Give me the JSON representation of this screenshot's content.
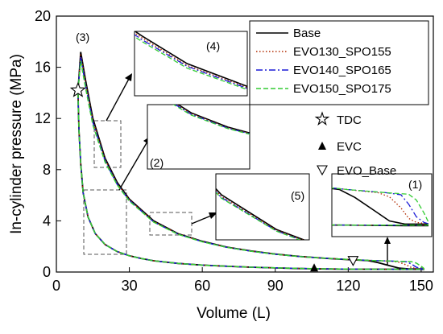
{
  "chart_data": {
    "type": "line",
    "xlabel": "Volume (L)",
    "ylabel": "In-cylinder pressure (MPa)",
    "xlim": [
      0,
      155
    ],
    "ylim": [
      0,
      20
    ],
    "x_ticks": [
      0,
      30,
      60,
      90,
      120,
      150
    ],
    "y_ticks": [
      0,
      4,
      8,
      12,
      16,
      20
    ],
    "legend": {
      "position": "top-right"
    },
    "series": [
      {
        "name": "Base",
        "color": "#000000",
        "dash": "solid",
        "expansion": [
          [
            10,
            17.2
          ],
          [
            12,
            15.0
          ],
          [
            15,
            12.0
          ],
          [
            20,
            8.9
          ],
          [
            25,
            7.0
          ],
          [
            30,
            5.7
          ],
          [
            40,
            4.0
          ],
          [
            50,
            3.0
          ],
          [
            60,
            2.4
          ],
          [
            70,
            1.95
          ],
          [
            80,
            1.65
          ],
          [
            90,
            1.4
          ],
          [
            100,
            1.22
          ],
          [
            110,
            1.08
          ],
          [
            120,
            0.97
          ],
          [
            128,
            0.9
          ],
          [
            132,
            0.75
          ],
          [
            137,
            0.5
          ],
          [
            141,
            0.3
          ],
          [
            145,
            0.24
          ],
          [
            149,
            0.24
          ],
          [
            151,
            0.24
          ]
        ],
        "compression": [
          [
            151,
            0.21
          ],
          [
            145,
            0.21
          ],
          [
            130,
            0.22
          ],
          [
            120,
            0.22
          ],
          [
            110,
            0.24
          ],
          [
            100,
            0.27
          ],
          [
            90,
            0.32
          ],
          [
            80,
            0.38
          ],
          [
            70,
            0.45
          ],
          [
            60,
            0.54
          ],
          [
            50,
            0.67
          ],
          [
            40,
            0.88
          ],
          [
            35,
            1.05
          ],
          [
            30,
            1.27
          ],
          [
            25,
            1.6
          ],
          [
            20,
            2.15
          ],
          [
            16,
            3.0
          ],
          [
            13,
            4.3
          ],
          [
            11,
            6.2
          ],
          [
            10,
            8.5
          ],
          [
            9.3,
            11.0
          ],
          [
            9,
            13.0
          ],
          [
            8.9,
            14.2
          ],
          [
            10,
            17.2
          ]
        ]
      },
      {
        "name": "EVO130_SPO155",
        "color": "#b22b00",
        "dash": "dotted",
        "expansion": [
          [
            10,
            17.0
          ],
          [
            12,
            14.8
          ],
          [
            15,
            11.8
          ],
          [
            20,
            8.8
          ],
          [
            25,
            6.9
          ],
          [
            30,
            5.65
          ],
          [
            40,
            3.95
          ],
          [
            50,
            2.98
          ],
          [
            60,
            2.38
          ],
          [
            70,
            1.94
          ],
          [
            80,
            1.64
          ],
          [
            90,
            1.39
          ],
          [
            100,
            1.21
          ],
          [
            110,
            1.08
          ],
          [
            120,
            0.98
          ],
          [
            130,
            0.9
          ],
          [
            138,
            0.84
          ],
          [
            141,
            0.76
          ],
          [
            144,
            0.55
          ],
          [
            146,
            0.35
          ],
          [
            148,
            0.27
          ],
          [
            151,
            0.25
          ]
        ],
        "compression": [
          [
            151,
            0.22
          ],
          [
            145,
            0.22
          ],
          [
            130,
            0.22
          ],
          [
            120,
            0.23
          ],
          [
            110,
            0.25
          ],
          [
            100,
            0.28
          ],
          [
            90,
            0.33
          ],
          [
            80,
            0.38
          ],
          [
            70,
            0.45
          ],
          [
            60,
            0.54
          ],
          [
            50,
            0.67
          ],
          [
            40,
            0.88
          ],
          [
            35,
            1.05
          ],
          [
            30,
            1.27
          ],
          [
            25,
            1.6
          ],
          [
            20,
            2.15
          ],
          [
            16,
            3.0
          ],
          [
            13,
            4.3
          ],
          [
            11,
            6.2
          ],
          [
            10,
            8.5
          ],
          [
            9.3,
            11.0
          ],
          [
            9,
            13.0
          ],
          [
            8.9,
            14.2
          ],
          [
            10,
            17.0
          ]
        ]
      },
      {
        "name": "EVO140_SPO165",
        "color": "#1a1ad6",
        "dash": "dashdot",
        "expansion": [
          [
            10,
            16.8
          ],
          [
            12,
            14.6
          ],
          [
            15,
            11.7
          ],
          [
            20,
            8.7
          ],
          [
            25,
            6.85
          ],
          [
            30,
            5.6
          ],
          [
            40,
            3.92
          ],
          [
            50,
            2.96
          ],
          [
            60,
            2.37
          ],
          [
            70,
            1.93
          ],
          [
            80,
            1.63
          ],
          [
            90,
            1.39
          ],
          [
            100,
            1.21
          ],
          [
            110,
            1.08
          ],
          [
            120,
            0.98
          ],
          [
            130,
            0.9
          ],
          [
            140,
            0.84
          ],
          [
            144,
            0.8
          ],
          [
            146,
            0.62
          ],
          [
            148,
            0.38
          ],
          [
            150,
            0.27
          ],
          [
            151,
            0.25
          ]
        ],
        "compression": [
          [
            151,
            0.22
          ],
          [
            145,
            0.22
          ],
          [
            130,
            0.22
          ],
          [
            120,
            0.23
          ],
          [
            110,
            0.25
          ],
          [
            100,
            0.28
          ],
          [
            90,
            0.33
          ],
          [
            80,
            0.38
          ],
          [
            70,
            0.45
          ],
          [
            60,
            0.54
          ],
          [
            50,
            0.67
          ],
          [
            40,
            0.88
          ],
          [
            35,
            1.05
          ],
          [
            30,
            1.27
          ],
          [
            25,
            1.6
          ],
          [
            20,
            2.15
          ],
          [
            16,
            3.0
          ],
          [
            13,
            4.3
          ],
          [
            11,
            6.2
          ],
          [
            10,
            8.5
          ],
          [
            9.3,
            11.0
          ],
          [
            9,
            13.0
          ],
          [
            8.9,
            14.2
          ],
          [
            10,
            16.8
          ]
        ]
      },
      {
        "name": "EVO150_SPO175",
        "color": "#33cc33",
        "dash": "dashed",
        "expansion": [
          [
            10,
            16.5
          ],
          [
            12,
            14.4
          ],
          [
            15,
            11.5
          ],
          [
            20,
            8.6
          ],
          [
            25,
            6.8
          ],
          [
            30,
            5.55
          ],
          [
            40,
            3.9
          ],
          [
            50,
            2.95
          ],
          [
            60,
            2.36
          ],
          [
            70,
            1.93
          ],
          [
            80,
            1.63
          ],
          [
            90,
            1.39
          ],
          [
            100,
            1.21
          ],
          [
            110,
            1.08
          ],
          [
            120,
            0.98
          ],
          [
            130,
            0.9
          ],
          [
            140,
            0.84
          ],
          [
            146,
            0.81
          ],
          [
            148,
            0.7
          ],
          [
            150,
            0.45
          ],
          [
            151,
            0.3
          ]
        ],
        "compression": [
          [
            151,
            0.22
          ],
          [
            145,
            0.22
          ],
          [
            130,
            0.22
          ],
          [
            120,
            0.23
          ],
          [
            110,
            0.25
          ],
          [
            100,
            0.28
          ],
          [
            90,
            0.33
          ],
          [
            80,
            0.38
          ],
          [
            70,
            0.45
          ],
          [
            60,
            0.54
          ],
          [
            50,
            0.67
          ],
          [
            40,
            0.88
          ],
          [
            35,
            1.05
          ],
          [
            30,
            1.27
          ],
          [
            25,
            1.6
          ],
          [
            20,
            2.15
          ],
          [
            16,
            3.0
          ],
          [
            13,
            4.3
          ],
          [
            11,
            6.2
          ],
          [
            10,
            8.5
          ],
          [
            9.3,
            11.0
          ],
          [
            9,
            13.0
          ],
          [
            8.9,
            14.2
          ],
          [
            10,
            16.5
          ]
        ]
      }
    ],
    "markers": [
      {
        "name": "TDC",
        "shape": "star",
        "x": 8.9,
        "y": 14.2
      },
      {
        "name": "EVC",
        "shape": "triangle-up-filled",
        "x": 106,
        "y": 0.3
      },
      {
        "name": "EVO_Base",
        "shape": "triangle-down-open",
        "x": 122,
        "y": 0.9
      }
    ],
    "annotations": [
      "(1)",
      "(2)",
      "(3)",
      "(4)",
      "(5)"
    ]
  }
}
